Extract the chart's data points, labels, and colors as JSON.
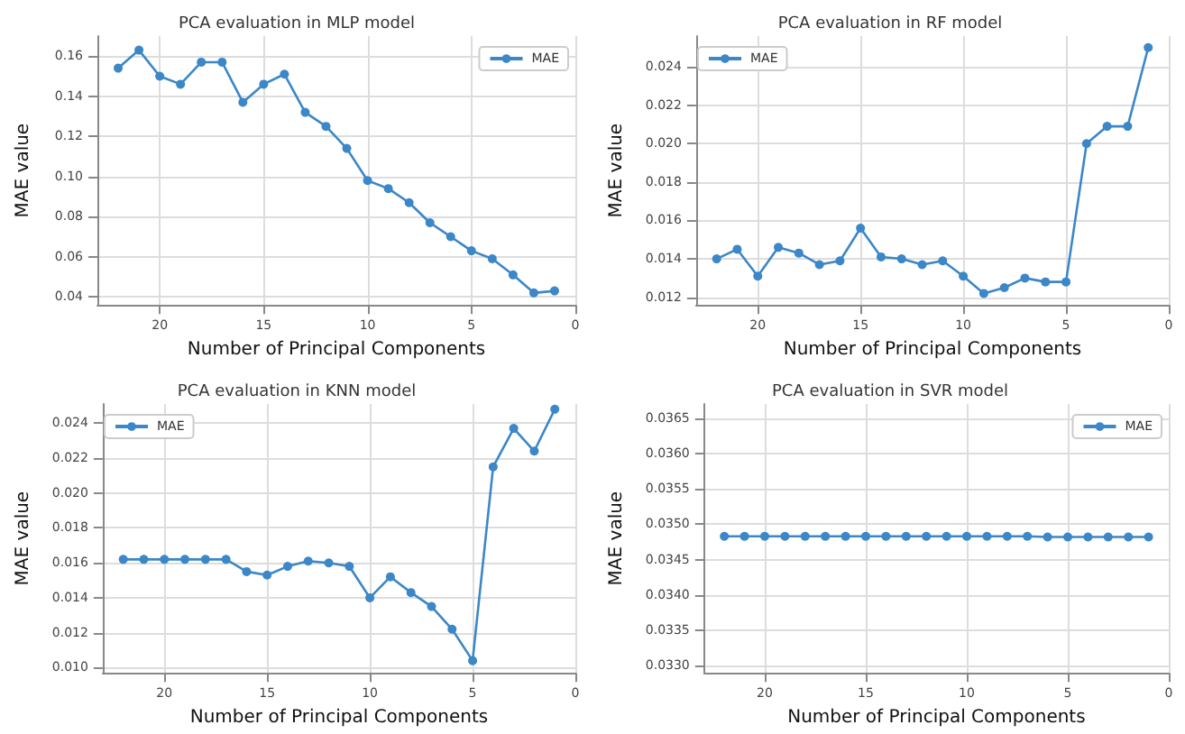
{
  "chart_data": [
    {
      "type": "line",
      "title": "PCA evaluation in MLP model",
      "xlabel": "Number of Principal Components",
      "ylabel": "MAE value",
      "x": [
        22,
        21,
        20,
        19,
        18,
        17,
        16,
        15,
        14,
        13,
        12,
        11,
        10,
        9,
        8,
        7,
        6,
        5,
        4,
        3,
        2,
        1
      ],
      "series": [
        {
          "name": "MAE",
          "color": "#3b87c7",
          "values": [
            0.154,
            0.163,
            0.15,
            0.146,
            0.157,
            0.157,
            0.137,
            0.146,
            0.151,
            0.132,
            0.125,
            0.114,
            0.098,
            0.094,
            0.087,
            0.077,
            0.07,
            0.063,
            0.059,
            0.051,
            0.042,
            0.043
          ]
        }
      ],
      "xlim": [
        23,
        0
      ],
      "xticks": [
        20,
        15,
        10,
        5,
        0
      ],
      "ylim": [
        0.036,
        0.17
      ],
      "yticks": [
        0.04,
        0.06,
        0.08,
        {
          "value": 0.1,
          "label": "0.10"
        },
        0.12,
        0.14,
        0.16
      ],
      "grid": true,
      "legend": "top right",
      "marker": "circle"
    },
    {
      "type": "line",
      "title": "PCA evaluation in RF model",
      "xlabel": "Number of Principal Components",
      "ylabel": "MAE value",
      "x": [
        22,
        21,
        20,
        19,
        18,
        17,
        16,
        15,
        14,
        13,
        12,
        11,
        10,
        9,
        8,
        7,
        6,
        5,
        4,
        3,
        2,
        1
      ],
      "series": [
        {
          "name": "MAE",
          "color": "#3b87c7",
          "values": [
            0.014,
            0.0145,
            0.0131,
            0.0146,
            0.0143,
            0.0137,
            0.0139,
            0.0156,
            0.0141,
            0.014,
            0.0137,
            0.0139,
            0.0131,
            0.0122,
            0.0125,
            0.013,
            0.0128,
            0.0128,
            0.02,
            0.0209,
            0.0209,
            0.025
          ]
        }
      ],
      "xlim": [
        23,
        0
      ],
      "xticks": [
        20,
        15,
        10,
        5,
        0
      ],
      "ylim": [
        0.0116,
        0.0256
      ],
      "yticks": [
        0.012,
        0.014,
        0.016,
        0.018,
        {
          "value": 0.02,
          "label": "0.020"
        },
        0.022,
        0.024
      ],
      "grid": true,
      "legend": "top left",
      "marker": "circle"
    },
    {
      "type": "line",
      "title": "PCA evaluation in KNN model",
      "xlabel": "Number of Principal Components",
      "ylabel": "MAE value",
      "x": [
        22,
        21,
        20,
        19,
        18,
        17,
        16,
        15,
        14,
        13,
        12,
        11,
        10,
        9,
        8,
        7,
        6,
        5,
        4,
        3,
        2,
        1
      ],
      "series": [
        {
          "name": "MAE",
          "color": "#3b87c7",
          "values": [
            0.0162,
            0.0162,
            0.0162,
            0.0162,
            0.0162,
            0.0162,
            0.0155,
            0.0153,
            0.0158,
            0.0161,
            0.016,
            0.0158,
            0.014,
            0.0152,
            0.0143,
            0.0135,
            0.0122,
            0.0104,
            0.0215,
            0.0237,
            0.0224,
            0.0248
          ]
        }
      ],
      "xlim": [
        23,
        0
      ],
      "xticks": [
        20,
        15,
        10,
        5,
        0
      ],
      "ylim": [
        0.0097,
        0.0251
      ],
      "yticks": [
        {
          "value": 0.01,
          "label": "0.010"
        },
        0.012,
        0.014,
        0.016,
        0.018,
        {
          "value": 0.02,
          "label": "0.020"
        },
        0.022,
        0.024
      ],
      "grid": true,
      "legend": "top left",
      "marker": "circle"
    },
    {
      "type": "line",
      "title": "PCA evaluation in SVR model",
      "xlabel": "Number of Principal Components",
      "ylabel": "MAE value",
      "x": [
        22,
        21,
        20,
        19,
        18,
        17,
        16,
        15,
        14,
        13,
        12,
        11,
        10,
        9,
        8,
        7,
        6,
        5,
        4,
        3,
        2,
        1
      ],
      "series": [
        {
          "name": "MAE",
          "color": "#3b87c7",
          "values": [
            0.03483,
            0.03483,
            0.03483,
            0.03483,
            0.03483,
            0.03483,
            0.03483,
            0.03483,
            0.03483,
            0.03483,
            0.03483,
            0.03483,
            0.03483,
            0.03483,
            0.03483,
            0.03483,
            0.03482,
            0.03482,
            0.03482,
            0.03482,
            0.03482,
            0.03482
          ]
        }
      ],
      "xlim": [
        23,
        0
      ],
      "xticks": [
        20,
        15,
        10,
        5,
        0
      ],
      "ylim": [
        0.0329,
        0.0367
      ],
      "yticks": [
        {
          "value": 0.033,
          "label": "0.0330"
        },
        0.0335,
        {
          "value": 0.034,
          "label": "0.0340"
        },
        0.0345,
        {
          "value": 0.035,
          "label": "0.0350"
        },
        0.0355,
        {
          "value": 0.036,
          "label": "0.0360"
        },
        0.0365
      ],
      "grid": true,
      "legend": "top right",
      "marker": "circle"
    }
  ]
}
